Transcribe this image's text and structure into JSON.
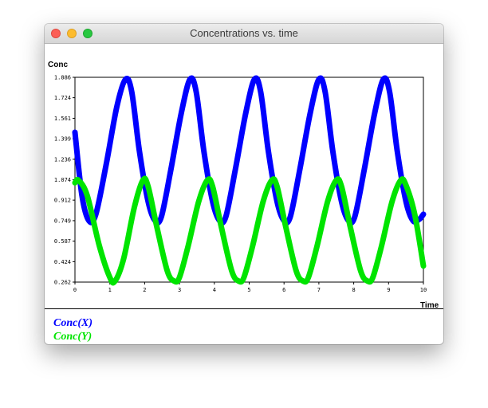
{
  "window": {
    "title": "Concentrations vs. time"
  },
  "chart_data": {
    "type": "line",
    "title": "",
    "xlabel": "Time",
    "ylabel": "Conc",
    "xlim": [
      0,
      10
    ],
    "ylim": [
      0.262,
      1.886
    ],
    "x_ticks": [
      "0",
      "1",
      "2",
      "3",
      "4",
      "5",
      "6",
      "7",
      "8",
      "9",
      "10"
    ],
    "y_ticks": [
      "0.262",
      "0.424",
      "0.587",
      "0.749",
      "0.912",
      "1.074",
      "1.236",
      "1.399",
      "1.561",
      "1.724",
      "1.886"
    ],
    "grid": false,
    "legend": "bottom-left",
    "series": [
      {
        "name": "Conc(X)",
        "color": "#0000ff",
        "x": [
          0,
          0.2,
          0.4,
          0.6,
          0.9,
          1.2,
          1.45,
          1.63,
          1.85,
          2.1,
          2.3,
          2.48,
          2.75,
          3.05,
          3.3,
          3.48,
          3.7,
          3.95,
          4.15,
          4.33,
          4.6,
          4.9,
          5.15,
          5.33,
          5.55,
          5.8,
          6.0,
          6.18,
          6.45,
          6.75,
          7.0,
          7.18,
          7.4,
          7.65,
          7.85,
          8.03,
          8.3,
          8.6,
          8.85,
          9.03,
          9.25,
          9.5,
          9.7,
          9.88,
          10.0
        ],
        "y": [
          1.45,
          0.95,
          0.749,
          0.8,
          1.2,
          1.65,
          1.87,
          1.77,
          1.3,
          0.9,
          0.749,
          0.78,
          1.15,
          1.6,
          1.87,
          1.77,
          1.3,
          0.9,
          0.749,
          0.78,
          1.15,
          1.6,
          1.87,
          1.77,
          1.3,
          0.9,
          0.749,
          0.78,
          1.15,
          1.6,
          1.87,
          1.77,
          1.3,
          0.9,
          0.749,
          0.78,
          1.15,
          1.6,
          1.87,
          1.77,
          1.3,
          0.9,
          0.749,
          0.76,
          0.8
        ]
      },
      {
        "name": "Conc(Y)",
        "color": "#00e400",
        "x": [
          0,
          0.1,
          0.35,
          0.7,
          1.0,
          1.15,
          1.4,
          1.7,
          1.95,
          2.1,
          2.35,
          2.65,
          2.85,
          3.0,
          3.25,
          3.55,
          3.8,
          3.95,
          4.2,
          4.5,
          4.7,
          4.85,
          5.1,
          5.4,
          5.65,
          5.8,
          6.05,
          6.35,
          6.55,
          6.7,
          6.95,
          7.25,
          7.5,
          7.65,
          7.9,
          8.2,
          8.4,
          8.55,
          8.8,
          9.1,
          9.35,
          9.5,
          9.75,
          10.0
        ],
        "y": [
          1.05,
          1.07,
          0.95,
          0.55,
          0.3,
          0.27,
          0.45,
          0.85,
          1.07,
          1.02,
          0.7,
          0.35,
          0.27,
          0.3,
          0.55,
          0.9,
          1.07,
          1.02,
          0.7,
          0.35,
          0.27,
          0.3,
          0.55,
          0.9,
          1.07,
          1.02,
          0.7,
          0.35,
          0.27,
          0.3,
          0.55,
          0.9,
          1.07,
          1.02,
          0.7,
          0.35,
          0.27,
          0.3,
          0.55,
          0.9,
          1.07,
          1.03,
          0.8,
          0.39
        ]
      }
    ]
  }
}
